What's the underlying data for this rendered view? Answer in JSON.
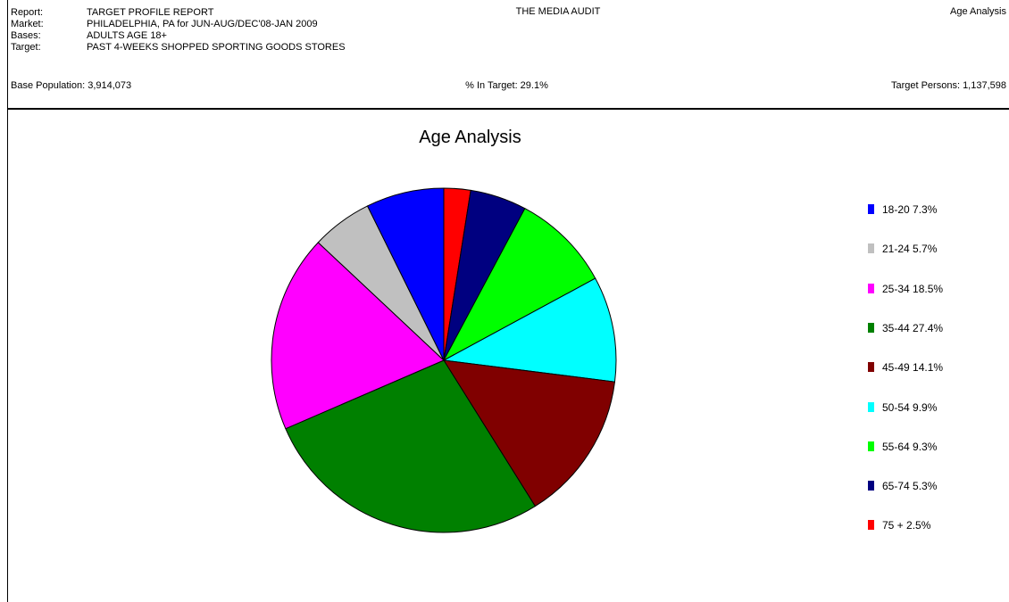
{
  "header": {
    "rows": [
      {
        "label": "Report:",
        "value": "TARGET PROFILE REPORT"
      },
      {
        "label": "Market:",
        "value": "PHILADELPHIA, PA for JUN-AUG/DEC'08-JAN 2009"
      },
      {
        "label": "Bases:",
        "value": "ADULTS AGE 18+"
      },
      {
        "label": "Target:",
        "value": "PAST 4-WEEKS SHOPPED SPORTING GOODS STORES"
      }
    ],
    "center_title": "THE MEDIA AUDIT",
    "right_title": "Age Analysis",
    "base_population": "Base Population: 3,914,073",
    "pct_in_target": "% In Target: 29.1%",
    "target_persons": "Target Persons: 1,137,598"
  },
  "chart_data": {
    "type": "pie",
    "title": "Age Analysis",
    "legend_position": "right",
    "slices": [
      {
        "label": "18-20",
        "value": 7.3,
        "legend": "18-20 7.3%",
        "color": "#0000ff"
      },
      {
        "label": "21-24",
        "value": 5.7,
        "legend": "21-24 5.7%",
        "color": "#c0c0c0"
      },
      {
        "label": "25-34",
        "value": 18.5,
        "legend": "25-34 18.5%",
        "color": "#ff00ff"
      },
      {
        "label": "35-44",
        "value": 27.4,
        "legend": "35-44 27.4%",
        "color": "#008000"
      },
      {
        "label": "45-49",
        "value": 14.1,
        "legend": "45-49 14.1%",
        "color": "#800000"
      },
      {
        "label": "50-54",
        "value": 9.9,
        "legend": "50-54 9.9%",
        "color": "#00ffff"
      },
      {
        "label": "55-64",
        "value": 9.3,
        "legend": "55-64 9.3%",
        "color": "#00ff00"
      },
      {
        "label": "65-74",
        "value": 5.3,
        "legend": "65-74 5.3%",
        "color": "#000080"
      },
      {
        "label": "75 +",
        "value": 2.5,
        "legend": "75 + 2.5%",
        "color": "#ff0000"
      }
    ]
  }
}
